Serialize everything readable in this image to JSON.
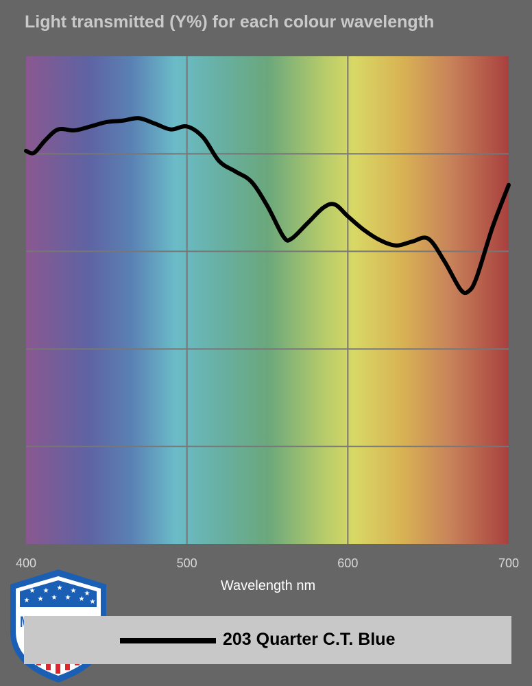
{
  "chart_data": {
    "type": "line",
    "title": "Light transmitted (Y%) for each colour wavelength",
    "xlabel": "Wavelength nm",
    "ylabel": "",
    "xlim": [
      400,
      700
    ],
    "ylim": [
      0,
      100
    ],
    "xticks": [
      400,
      500,
      600,
      700
    ],
    "yticks_gridlines": [
      20,
      40,
      60,
      80
    ],
    "grid": true,
    "background": "visible spectrum gradient",
    "legend_placement": "bottom",
    "series": [
      {
        "name": "203 Quarter C.T. Blue",
        "color": "#000000",
        "x": [
          400,
          405,
          412,
          420,
          430,
          440,
          450,
          460,
          470,
          480,
          490,
          500,
          510,
          520,
          530,
          540,
          550,
          560,
          565,
          575,
          585,
          592,
          600,
          610,
          620,
          630,
          640,
          650,
          660,
          670,
          675,
          680,
          690,
          700
        ],
        "y": [
          80.6,
          80.2,
          82.8,
          85.0,
          84.8,
          85.6,
          86.5,
          86.8,
          87.3,
          86.2,
          85.0,
          85.6,
          83.4,
          78.5,
          76.4,
          74.3,
          69.3,
          63.0,
          62.6,
          65.8,
          69.0,
          69.6,
          67.2,
          64.4,
          62.3,
          61.2,
          62.0,
          62.6,
          58.0,
          52.2,
          51.8,
          54.6,
          65.0,
          73.6
        ]
      }
    ]
  },
  "badge": {
    "text": "MADE IN USA",
    "colors": {
      "blue": "#1a5fb4",
      "red": "#e0262c"
    }
  }
}
